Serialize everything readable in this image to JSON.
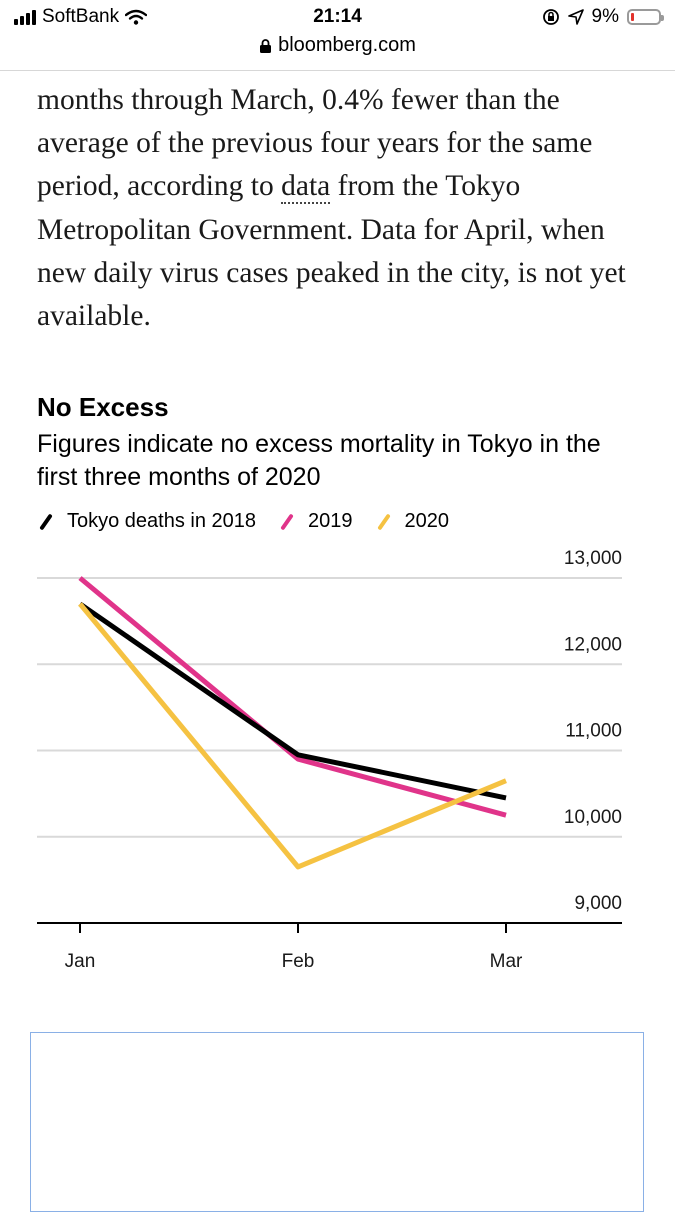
{
  "status_bar": {
    "carrier": "SoftBank",
    "time": "21:14",
    "battery_text": "9%"
  },
  "url_bar": {
    "domain": "bloomberg.com"
  },
  "article": {
    "paragraph_parts": [
      "months through March, 0.4% fewer than the average of the previous four years for the same period, according to ",
      "data",
      " from the Tokyo Metropolitan Government. Data for April, when new daily virus cases peaked in the city, is not yet available."
    ]
  },
  "chart_data": {
    "type": "line",
    "title": "No Excess",
    "subtitle": "Figures indicate no excess mortality in Tokyo in the first three months of 2020",
    "categories": [
      "Jan",
      "Feb",
      "Mar"
    ],
    "ylim": [
      9000,
      13000
    ],
    "yticks": [
      13000,
      12000,
      11000,
      10000,
      9000
    ],
    "ytick_labels": [
      "13,000",
      "12,000",
      "11,000",
      "10,000",
      "9,000"
    ],
    "series": [
      {
        "name": "Tokyo deaths in 2018",
        "color": "#000000",
        "values": [
          12700,
          10950,
          10450
        ]
      },
      {
        "name": "2019",
        "color": "#e0348a",
        "values": [
          13000,
          10900,
          10250
        ]
      },
      {
        "name": "2020",
        "color": "#f5c242",
        "values": [
          12700,
          9650,
          10650
        ]
      }
    ]
  }
}
